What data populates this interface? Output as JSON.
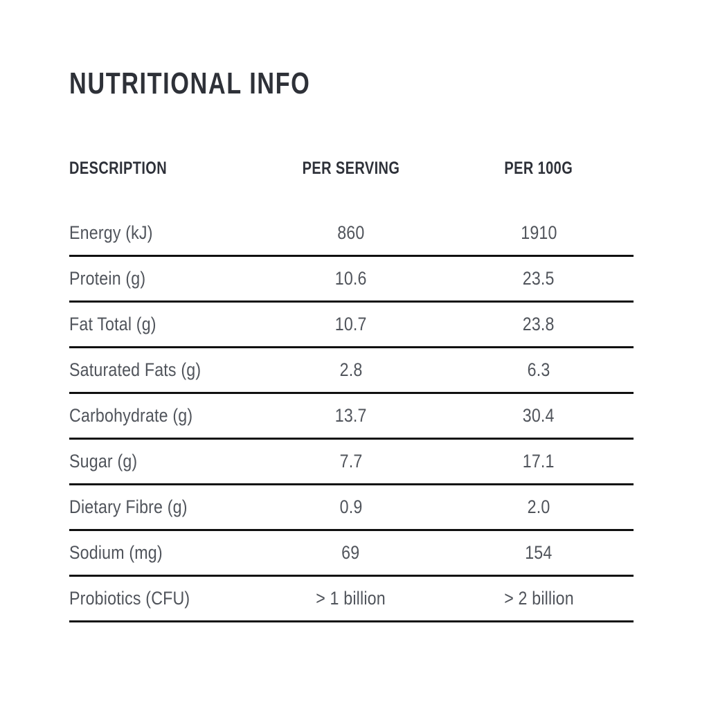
{
  "title": "NUTRITIONAL INFO",
  "table": {
    "headers": [
      "DESCRIPTION",
      "PER SERVING",
      "PER 100G"
    ],
    "rows": [
      [
        "Energy (kJ)",
        "860",
        "1910"
      ],
      [
        "Protein (g)",
        "10.6",
        "23.5"
      ],
      [
        "Fat Total (g)",
        "10.7",
        "23.8"
      ],
      [
        "Saturated Fats (g)",
        "2.8",
        "6.3"
      ],
      [
        "Carbohydrate (g)",
        "13.7",
        "30.4"
      ],
      [
        "Sugar (g)",
        "7.7",
        "17.1"
      ],
      [
        "Dietary Fibre (g)",
        "0.9",
        "2.0"
      ],
      [
        "Sodium (mg)",
        "69",
        "154"
      ],
      [
        "Probiotics (CFU)",
        "> 1 billion",
        "> 2 billion"
      ]
    ]
  },
  "colors": {
    "background": "#ffffff",
    "title_text": "#2e3138",
    "header_text": "#2e3139",
    "body_text": "#50545b",
    "rule_line": "#101010"
  }
}
